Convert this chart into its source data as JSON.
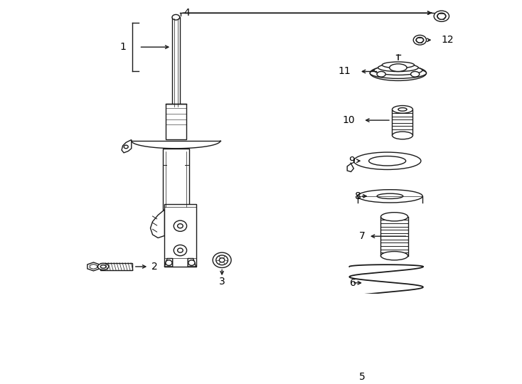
{
  "bg_color": "#ffffff",
  "line_color": "#1a1a1a",
  "fig_width": 7.34,
  "fig_height": 5.4,
  "dpi": 100,
  "lw": 1.0
}
